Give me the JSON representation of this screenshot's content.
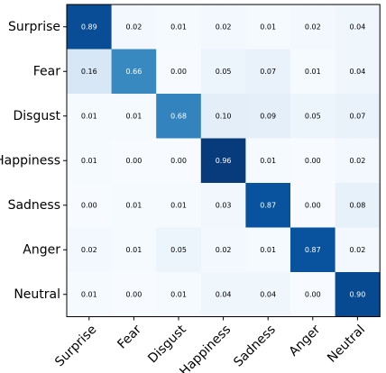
{
  "chart_data": {
    "type": "heatmap",
    "title": "",
    "xlabel": "",
    "ylabel": "",
    "x_categories": [
      "Surprise",
      "Fear",
      "Disgust",
      "Happiness",
      "Sadness",
      "Anger",
      "Neutral"
    ],
    "y_categories": [
      "Surprise",
      "Fear",
      "Disgust",
      "Happiness",
      "Sadness",
      "Anger",
      "Neutral"
    ],
    "values": [
      [
        0.89,
        0.02,
        0.01,
        0.02,
        0.01,
        0.02,
        0.04
      ],
      [
        0.16,
        0.66,
        0.0,
        0.05,
        0.07,
        0.01,
        0.04
      ],
      [
        0.01,
        0.01,
        0.68,
        0.1,
        0.09,
        0.05,
        0.07
      ],
      [
        0.01,
        0.0,
        0.0,
        0.96,
        0.01,
        0.0,
        0.02
      ],
      [
        0.0,
        0.01,
        0.01,
        0.03,
        0.87,
        0.0,
        0.08
      ],
      [
        0.02,
        0.01,
        0.05,
        0.02,
        0.01,
        0.87,
        0.02
      ],
      [
        0.01,
        0.0,
        0.01,
        0.04,
        0.04,
        0.0,
        0.9
      ]
    ],
    "colormap": "Blues",
    "value_range": [
      0,
      1
    ],
    "value_format": "2-decimal",
    "grid": false,
    "legend": "none"
  }
}
